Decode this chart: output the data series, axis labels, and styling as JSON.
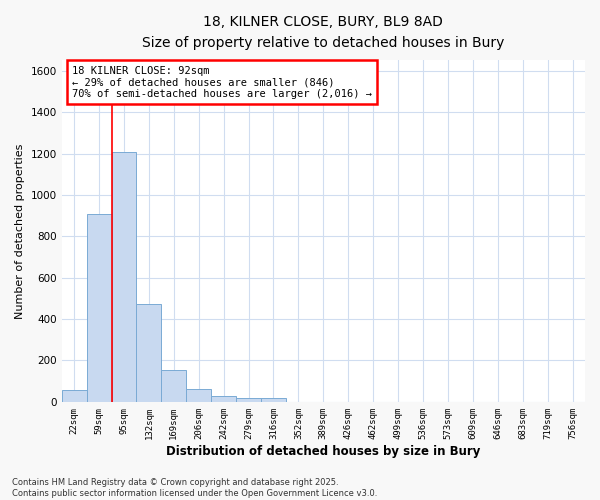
{
  "title_line1": "18, KILNER CLOSE, BURY, BL9 8AD",
  "title_line2": "Size of property relative to detached houses in Bury",
  "xlabel": "Distribution of detached houses by size in Bury",
  "ylabel": "Number of detached properties",
  "annotation_line1": "18 KILNER CLOSE: 92sqm",
  "annotation_line2": "← 29% of detached houses are smaller (846)",
  "annotation_line3": "70% of semi-detached houses are larger (2,016) →",
  "bar_labels": [
    "22sqm",
    "59sqm",
    "95sqm",
    "132sqm",
    "169sqm",
    "206sqm",
    "242sqm",
    "279sqm",
    "316sqm",
    "352sqm",
    "389sqm",
    "426sqm",
    "462sqm",
    "499sqm",
    "536sqm",
    "573sqm",
    "609sqm",
    "646sqm",
    "683sqm",
    "719sqm",
    "756sqm"
  ],
  "bar_values": [
    55,
    910,
    1210,
    475,
    155,
    60,
    28,
    18,
    18,
    0,
    0,
    0,
    0,
    0,
    0,
    0,
    0,
    0,
    0,
    0,
    0
  ],
  "bar_color": "#c8d9f0",
  "bar_edge_color": "#7aaad4",
  "redline_index": 2,
  "ylim": [
    0,
    1650
  ],
  "yticks": [
    0,
    200,
    400,
    600,
    800,
    1000,
    1200,
    1400,
    1600
  ],
  "plot_bg_color": "#ffffff",
  "fig_bg_color": "#f8f8f8",
  "grid_color": "#d0ddf0",
  "footnote_line1": "Contains HM Land Registry data © Crown copyright and database right 2025.",
  "footnote_line2": "Contains public sector information licensed under the Open Government Licence v3.0."
}
